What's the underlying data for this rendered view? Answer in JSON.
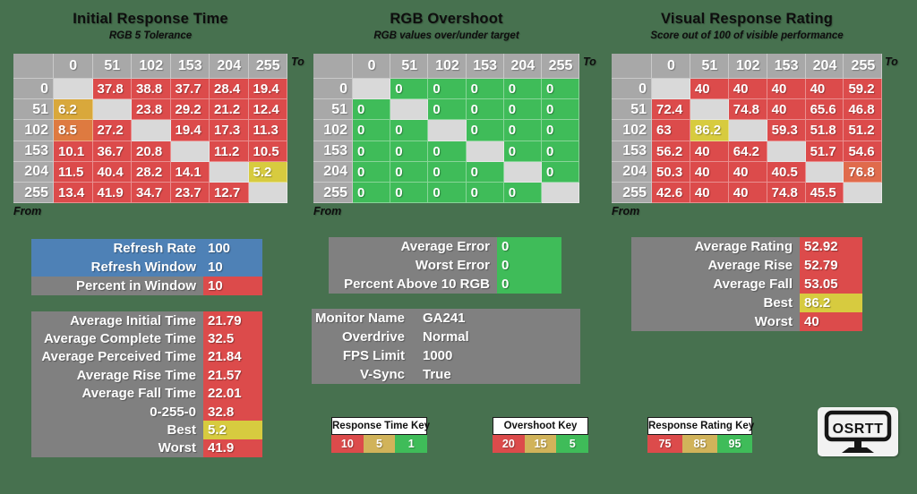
{
  "palette": {
    "background": "#47714F",
    "header_gray": "#A8A8A8",
    "box_gray": "#808080",
    "blank": "#D9D9D9",
    "red": "#DC4B4B",
    "green": "#3FBC59",
    "blue": "#4E81B6",
    "yellow": "#D7CB3F",
    "gold": "#D9A83B",
    "orange": "#DE7A40",
    "orange_red": "#E06B4C",
    "key_gold": "#D1B35A"
  },
  "chart_data": [
    {
      "type": "heatmap",
      "title": "Initial Response Time",
      "subtitle": "RGB 5 Tolerance",
      "x": [
        "0",
        "51",
        "102",
        "153",
        "204",
        "255"
      ],
      "y": [
        "0",
        "51",
        "102",
        "153",
        "204",
        "255"
      ],
      "x_axis_label": "To",
      "y_axis_label": "From",
      "values": [
        [
          null,
          37.8,
          38.8,
          37.7,
          28.4,
          19.4
        ],
        [
          6.2,
          null,
          23.8,
          29.2,
          21.2,
          12.4
        ],
        [
          8.5,
          27.2,
          null,
          19.4,
          17.3,
          11.3
        ],
        [
          10.1,
          36.7,
          20.8,
          null,
          11.2,
          10.5
        ],
        [
          11.5,
          40.4,
          28.2,
          14.1,
          null,
          5.2
        ],
        [
          13.4,
          41.9,
          34.7,
          23.7,
          12.7,
          null
        ]
      ]
    },
    {
      "type": "heatmap",
      "title": "RGB Overshoot",
      "subtitle": "RGB values over/under target",
      "x": [
        "0",
        "51",
        "102",
        "153",
        "204",
        "255"
      ],
      "y": [
        "0",
        "51",
        "102",
        "153",
        "204",
        "255"
      ],
      "x_axis_label": "To",
      "y_axis_label": "From",
      "values": [
        [
          null,
          0,
          0,
          0,
          0,
          0
        ],
        [
          0,
          null,
          0,
          0,
          0,
          0
        ],
        [
          0,
          0,
          null,
          0,
          0,
          0
        ],
        [
          0,
          0,
          0,
          null,
          0,
          0
        ],
        [
          0,
          0,
          0,
          0,
          null,
          0
        ],
        [
          0,
          0,
          0,
          0,
          0,
          null
        ]
      ]
    },
    {
      "type": "heatmap",
      "title": "Visual Response Rating",
      "subtitle": "Score out of 100 of visible performance",
      "x": [
        "0",
        "51",
        "102",
        "153",
        "204",
        "255"
      ],
      "y": [
        "0",
        "51",
        "102",
        "153",
        "204",
        "255"
      ],
      "x_axis_label": "To",
      "y_axis_label": "From",
      "values": [
        [
          null,
          40,
          40,
          40,
          40,
          59.2
        ],
        [
          72.4,
          null,
          74.8,
          40,
          65.6,
          46.8
        ],
        [
          63,
          86.2,
          null,
          59.3,
          51.8,
          51.2
        ],
        [
          56.2,
          40,
          64.2,
          null,
          51.7,
          54.6
        ],
        [
          50.3,
          40,
          40,
          40.5,
          null,
          76.8
        ],
        [
          42.6,
          40,
          40,
          74.8,
          45.5,
          null
        ]
      ]
    }
  ],
  "heatmaps": [
    {
      "title": "Initial Response Time",
      "subtitle": "RGB 5 Tolerance",
      "axis_to": "To",
      "axis_from": "From",
      "col_headers": [
        "0",
        "51",
        "102",
        "153",
        "204",
        "255"
      ],
      "row_headers": [
        "0",
        "51",
        "102",
        "153",
        "204",
        "255"
      ],
      "cell_colors": [
        [
          "blank",
          "red",
          "red",
          "red",
          "red",
          "red"
        ],
        [
          "gold",
          "blank",
          "red",
          "red",
          "red",
          "red"
        ],
        [
          "orange",
          "red",
          "blank",
          "red",
          "red",
          "red"
        ],
        [
          "red",
          "red",
          "red",
          "blank",
          "red",
          "red"
        ],
        [
          "red",
          "red",
          "red",
          "red",
          "blank",
          "yellow"
        ],
        [
          "red",
          "red",
          "red",
          "red",
          "red",
          "blank"
        ]
      ]
    },
    {
      "title": "RGB Overshoot",
      "subtitle": "RGB values over/under target",
      "axis_to": "To",
      "axis_from": "From",
      "col_headers": [
        "0",
        "51",
        "102",
        "153",
        "204",
        "255"
      ],
      "row_headers": [
        "0",
        "51",
        "102",
        "153",
        "204",
        "255"
      ],
      "cell_colors": [
        [
          "blank",
          "green",
          "green",
          "green",
          "green",
          "green"
        ],
        [
          "green",
          "blank",
          "green",
          "green",
          "green",
          "green"
        ],
        [
          "green",
          "green",
          "blank",
          "green",
          "green",
          "green"
        ],
        [
          "green",
          "green",
          "green",
          "blank",
          "green",
          "green"
        ],
        [
          "green",
          "green",
          "green",
          "green",
          "blank",
          "green"
        ],
        [
          "green",
          "green",
          "green",
          "green",
          "green",
          "blank"
        ]
      ]
    },
    {
      "title": "Visual Response Rating",
      "subtitle": "Score out of 100 of visible performance",
      "axis_to": "To",
      "axis_from": "From",
      "col_headers": [
        "0",
        "51",
        "102",
        "153",
        "204",
        "255"
      ],
      "row_headers": [
        "0",
        "51",
        "102",
        "153",
        "204",
        "255"
      ],
      "cell_colors": [
        [
          "blank",
          "red",
          "red",
          "red",
          "red",
          "red"
        ],
        [
          "red",
          "blank",
          "red",
          "red",
          "red",
          "red"
        ],
        [
          "red",
          "yellow",
          "blank",
          "red",
          "red",
          "red"
        ],
        [
          "red",
          "red",
          "red",
          "blank",
          "red",
          "red"
        ],
        [
          "red",
          "red",
          "red",
          "red",
          "blank",
          "orange_red"
        ],
        [
          "red",
          "red",
          "red",
          "red",
          "red",
          "blank"
        ]
      ]
    }
  ],
  "boxes": {
    "refresh": {
      "rows": [
        {
          "label": "Refresh Rate",
          "value": "100",
          "label_bg": "blue",
          "value_bg": "blue"
        },
        {
          "label": "Refresh Window",
          "value": "10",
          "label_bg": "blue",
          "value_bg": "blue"
        },
        {
          "label": "Percent in Window",
          "value": "10",
          "label_bg": "box_gray",
          "value_bg": "red"
        }
      ]
    },
    "time_stats": {
      "rows": [
        {
          "label": "Average Initial Time",
          "value": "21.79",
          "label_bg": "box_gray",
          "value_bg": "red"
        },
        {
          "label": "Average Complete Time",
          "value": "32.5",
          "label_bg": "box_gray",
          "value_bg": "red"
        },
        {
          "label": "Average Perceived Time",
          "value": "21.84",
          "label_bg": "box_gray",
          "value_bg": "red"
        },
        {
          "label": "Average Rise Time",
          "value": "21.57",
          "label_bg": "box_gray",
          "value_bg": "red"
        },
        {
          "label": "Average Fall Time",
          "value": "22.01",
          "label_bg": "box_gray",
          "value_bg": "red"
        },
        {
          "label": "0-255-0",
          "value": "32.8",
          "label_bg": "box_gray",
          "value_bg": "red"
        },
        {
          "label": "Best",
          "value": "5.2",
          "label_bg": "box_gray",
          "value_bg": "yellow"
        },
        {
          "label": "Worst",
          "value": "41.9",
          "label_bg": "box_gray",
          "value_bg": "red"
        }
      ]
    },
    "error": {
      "rows": [
        {
          "label": "Average Error",
          "value": "0",
          "label_bg": "box_gray",
          "value_bg": "green"
        },
        {
          "label": "Worst Error",
          "value": "0",
          "label_bg": "box_gray",
          "value_bg": "green"
        },
        {
          "label": "Percent Above 10 RGB",
          "value": "0",
          "label_bg": "box_gray",
          "value_bg": "green"
        }
      ]
    },
    "monitor": {
      "rows": [
        {
          "label": "Monitor Name",
          "value": "GA241",
          "label_bg": "box_gray",
          "value_bg": "box_gray"
        },
        {
          "label": "Overdrive",
          "value": "Normal",
          "label_bg": "box_gray",
          "value_bg": "box_gray"
        },
        {
          "label": "FPS Limit",
          "value": "1000",
          "label_bg": "box_gray",
          "value_bg": "box_gray"
        },
        {
          "label": "V-Sync",
          "value": "True",
          "label_bg": "box_gray",
          "value_bg": "box_gray"
        }
      ]
    },
    "rating": {
      "rows": [
        {
          "label": "Average Rating",
          "value": "52.92",
          "label_bg": "box_gray",
          "value_bg": "red"
        },
        {
          "label": "Average Rise",
          "value": "52.79",
          "label_bg": "box_gray",
          "value_bg": "red"
        },
        {
          "label": "Average Fall",
          "value": "53.05",
          "label_bg": "box_gray",
          "value_bg": "red"
        },
        {
          "label": "Best",
          "value": "86.2",
          "label_bg": "box_gray",
          "value_bg": "yellow"
        },
        {
          "label": "Worst",
          "value": "40",
          "label_bg": "box_gray",
          "value_bg": "red"
        }
      ]
    }
  },
  "keys": [
    {
      "title": "Response Time Key",
      "cells": [
        {
          "label": "10",
          "bg": "red"
        },
        {
          "label": "5",
          "bg": "key_gold"
        },
        {
          "label": "1",
          "bg": "green"
        }
      ]
    },
    {
      "title": "Overshoot Key",
      "cells": [
        {
          "label": "20",
          "bg": "red"
        },
        {
          "label": "15",
          "bg": "key_gold"
        },
        {
          "label": "5",
          "bg": "green"
        }
      ]
    },
    {
      "title": "Response Rating Key",
      "cells": [
        {
          "label": "75",
          "bg": "red"
        },
        {
          "label": "85",
          "bg": "key_gold"
        },
        {
          "label": "95",
          "bg": "green"
        }
      ]
    }
  ],
  "logo": {
    "text": "OSRTT"
  }
}
